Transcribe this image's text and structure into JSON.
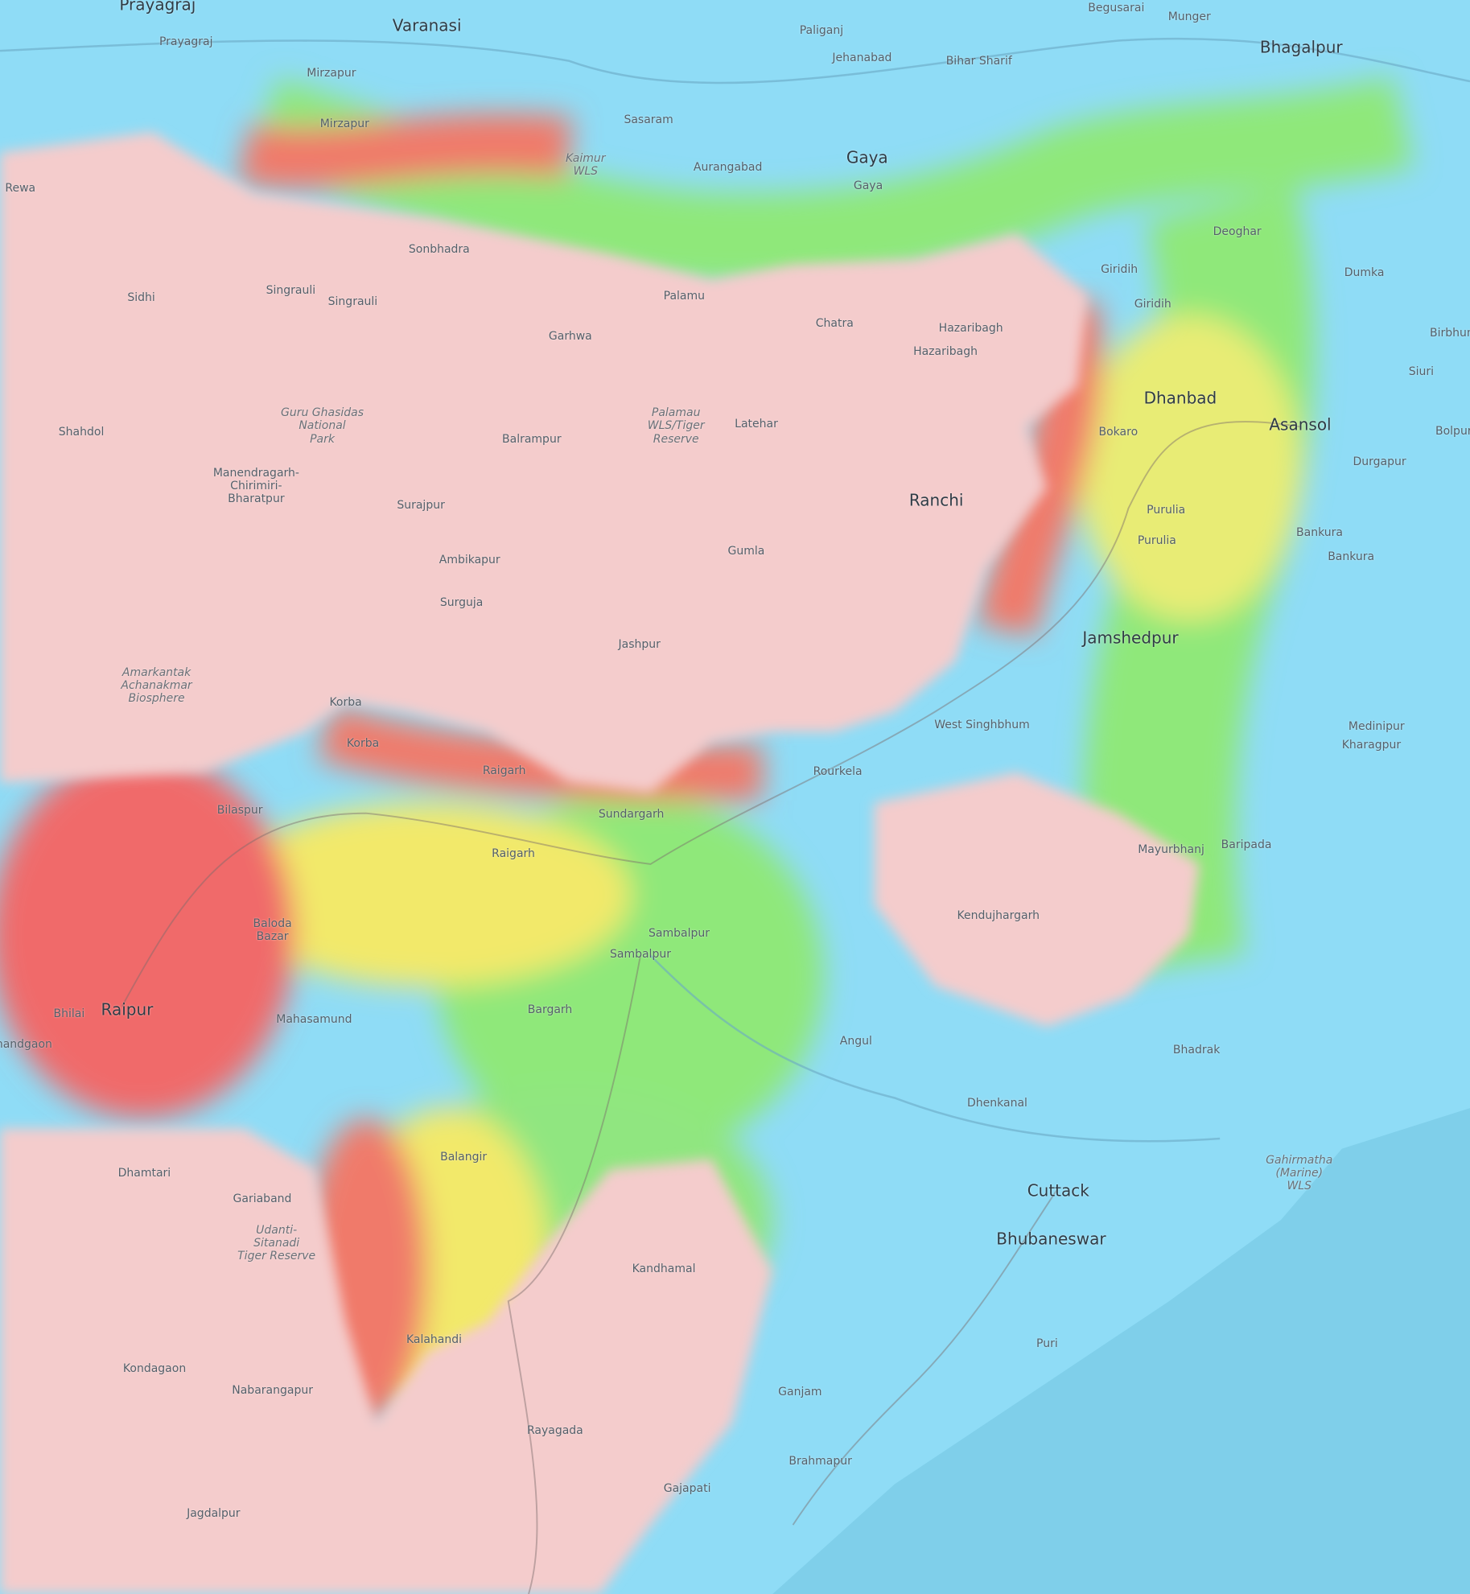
{
  "map": {
    "type": "topographic elevation map",
    "colors": {
      "water_lowland": "#8fdcf6",
      "sea": "#7fcfea",
      "highland": "#f4cccc",
      "elevation_red": "#f06a6a",
      "elevation_yellow": "#f2e96a",
      "elevation_green": "#7fe07a"
    },
    "labels": [
      {
        "text": "Prayagraj",
        "kind": "city"
      },
      {
        "text": "Varanasi",
        "kind": "city"
      },
      {
        "text": "Paliganj",
        "kind": "district"
      },
      {
        "text": "Begusarai",
        "kind": "district"
      },
      {
        "text": "Munger",
        "kind": "district"
      },
      {
        "text": "Bhagalpur",
        "kind": "city"
      },
      {
        "text": "Jehanabad",
        "kind": "district"
      },
      {
        "text": "Bihar Sharif",
        "kind": "district"
      },
      {
        "text": "Prayagraj",
        "kind": "district"
      },
      {
        "text": "Mirzapur",
        "kind": "district"
      },
      {
        "text": "Mirzapur",
        "kind": "district"
      },
      {
        "text": "Sasaram",
        "kind": "district"
      },
      {
        "text": "Kaimur\nWLS",
        "kind": "protected-area"
      },
      {
        "text": "Aurangabad",
        "kind": "district"
      },
      {
        "text": "Gaya",
        "kind": "city"
      },
      {
        "text": "Gaya",
        "kind": "district"
      },
      {
        "text": "Rewa",
        "kind": "district"
      },
      {
        "text": "Deoghar",
        "kind": "district"
      },
      {
        "text": "Dumka",
        "kind": "district"
      },
      {
        "text": "Sonbhadra",
        "kind": "district"
      },
      {
        "text": "Singrauli",
        "kind": "district"
      },
      {
        "text": "Singrauli",
        "kind": "district"
      },
      {
        "text": "Sidhi",
        "kind": "district"
      },
      {
        "text": "Palamu",
        "kind": "district"
      },
      {
        "text": "Garhwa",
        "kind": "district"
      },
      {
        "text": "Chatra",
        "kind": "district"
      },
      {
        "text": "Giridih",
        "kind": "district"
      },
      {
        "text": "Giridih",
        "kind": "district"
      },
      {
        "text": "Hazaribagh",
        "kind": "district"
      },
      {
        "text": "Hazaribagh",
        "kind": "district"
      },
      {
        "text": "Birbhum",
        "kind": "district"
      },
      {
        "text": "Siuri",
        "kind": "district"
      },
      {
        "text": "Dhanbad",
        "kind": "city"
      },
      {
        "text": "Asansol",
        "kind": "city"
      },
      {
        "text": "Bokaro",
        "kind": "district"
      },
      {
        "text": "Bolpur",
        "kind": "district"
      },
      {
        "text": "Durgapur",
        "kind": "district"
      },
      {
        "text": "Guru Ghasidas\nNational\nPark",
        "kind": "protected-area"
      },
      {
        "text": "Shahdol",
        "kind": "district"
      },
      {
        "text": "Palamau\nWLS/Tiger\nReserve",
        "kind": "protected-area"
      },
      {
        "text": "Latehar",
        "kind": "district"
      },
      {
        "text": "Balrampur",
        "kind": "district"
      },
      {
        "text": "Manendragarh-\nChirimiri-\nBharatpur",
        "kind": "district"
      },
      {
        "text": "Ranchi",
        "kind": "city"
      },
      {
        "text": "Purulia",
        "kind": "district"
      },
      {
        "text": "Purulia",
        "kind": "district"
      },
      {
        "text": "Surajpur",
        "kind": "district"
      },
      {
        "text": "Bankura",
        "kind": "district"
      },
      {
        "text": "Bankura",
        "kind": "district"
      },
      {
        "text": "Gumla",
        "kind": "district"
      },
      {
        "text": "Ambikapur",
        "kind": "district"
      },
      {
        "text": "Surguja",
        "kind": "district"
      },
      {
        "text": "Jashpur",
        "kind": "district"
      },
      {
        "text": "Jamshedpur",
        "kind": "city"
      },
      {
        "text": "Amarkantak\nAchanakmar\nBiosphere",
        "kind": "protected-area"
      },
      {
        "text": "Korba",
        "kind": "district"
      },
      {
        "text": "Korba",
        "kind": "district"
      },
      {
        "text": "West Singhbhum",
        "kind": "district"
      },
      {
        "text": "Medinipur",
        "kind": "district"
      },
      {
        "text": "Kharagpur",
        "kind": "district"
      },
      {
        "text": "Raigarh",
        "kind": "district"
      },
      {
        "text": "Rourkela",
        "kind": "district"
      },
      {
        "text": "Bilaspur",
        "kind": "district"
      },
      {
        "text": "Sundargarh",
        "kind": "district"
      },
      {
        "text": "Raigarh",
        "kind": "district"
      },
      {
        "text": "Mayurbhanj",
        "kind": "district"
      },
      {
        "text": "Baripada",
        "kind": "district"
      },
      {
        "text": "Kendujhargarh",
        "kind": "district"
      },
      {
        "text": "Baloda\nBazar",
        "kind": "district"
      },
      {
        "text": "Sambalpur",
        "kind": "district"
      },
      {
        "text": "Sambalpur",
        "kind": "district"
      },
      {
        "text": "Bhilai",
        "kind": "district"
      },
      {
        "text": "Raipur",
        "kind": "city"
      },
      {
        "text": "Rajnandgaon",
        "kind": "district"
      },
      {
        "text": "Mahasamund",
        "kind": "district"
      },
      {
        "text": "Bargarh",
        "kind": "district"
      },
      {
        "text": "Angul",
        "kind": "district"
      },
      {
        "text": "Bhadrak",
        "kind": "district"
      },
      {
        "text": "Dhenkanal",
        "kind": "district"
      },
      {
        "text": "Balangir",
        "kind": "district"
      },
      {
        "text": "Gahirmatha\n(Marine)\nWLS",
        "kind": "protected-area"
      },
      {
        "text": "Dhamtari",
        "kind": "district"
      },
      {
        "text": "Cuttack",
        "kind": "city"
      },
      {
        "text": "Gariaband",
        "kind": "district"
      },
      {
        "text": "Udanti-\nSitanadi\nTiger Reserve",
        "kind": "protected-area"
      },
      {
        "text": "Bhubaneswar",
        "kind": "city"
      },
      {
        "text": "Kandhamal",
        "kind": "district"
      },
      {
        "text": "Kalahandi",
        "kind": "district"
      },
      {
        "text": "Puri",
        "kind": "district"
      },
      {
        "text": "Kondagaon",
        "kind": "district"
      },
      {
        "text": "Nabarangapur",
        "kind": "district"
      },
      {
        "text": "Ganjam",
        "kind": "district"
      },
      {
        "text": "Rayagada",
        "kind": "district"
      },
      {
        "text": "Brahmapur",
        "kind": "district"
      },
      {
        "text": "Gajapati",
        "kind": "district"
      },
      {
        "text": "Jagdalpur",
        "kind": "district"
      }
    ]
  }
}
